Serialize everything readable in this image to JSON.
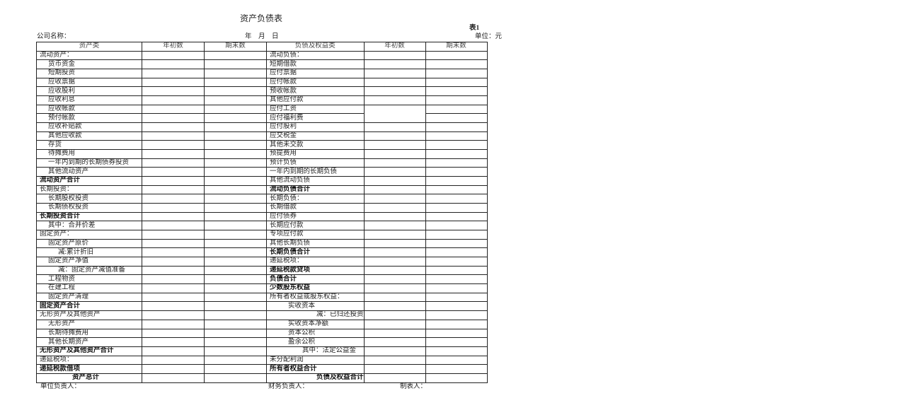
{
  "title": "资产负债表",
  "table_no": "表1",
  "company_label": "公司名称：",
  "date_label": "年　月　日",
  "unit_label": "单位：元",
  "headers": [
    "资产类",
    "年初数",
    "期末数",
    "负债及权益类",
    "年初数",
    "期末数"
  ],
  "assets": [
    {
      "label": "流动资产："
    },
    {
      "label": "货币资金"
    },
    {
      "label": "短期投资"
    },
    {
      "label": "应收票据"
    },
    {
      "label": "应收股利"
    },
    {
      "label": "应收利息"
    },
    {
      "label": "应收帐款"
    },
    {
      "label": "预付帐款"
    },
    {
      "label": "应收补贴款"
    },
    {
      "label": "其他应收款"
    },
    {
      "label": "存货"
    },
    {
      "label": "待摊费用"
    },
    {
      "label": "一年内到期的长期债券投资"
    },
    {
      "label": "其他流动资产"
    },
    {
      "label": "流动资产合计",
      "total": true
    },
    {
      "label": "长期投资："
    },
    {
      "label": "长期股权投资"
    },
    {
      "label": "长期债权投资"
    },
    {
      "label": "长期投资合计",
      "total": true
    },
    {
      "label": "其中：合并价差"
    },
    {
      "label": "固定资产："
    },
    {
      "label": "固定资产原价"
    },
    {
      "label": "减:累计折旧"
    },
    {
      "label": "固定资产净值"
    },
    {
      "label": "减：固定资产减值准备"
    },
    {
      "label": "工程物资"
    },
    {
      "label": "在建工程"
    },
    {
      "label": "固定资产清理"
    },
    {
      "label": "固定资产合计",
      "total": true
    },
    {
      "label": "无形资产及其他资产"
    },
    {
      "label": "无形资产"
    },
    {
      "label": "长期待摊费用"
    },
    {
      "label": "其他长期资产"
    },
    {
      "label": "无形资产及其他资产合计",
      "total": true
    },
    {
      "label": "递延税项："
    },
    {
      "label": "递延税款借项",
      "total": true
    },
    {
      "label": "资产总计",
      "total": true
    }
  ],
  "liabilities": [
    {
      "label": "流动负债："
    },
    {
      "label": "短期借款"
    },
    {
      "label": "应付票据"
    },
    {
      "label": "应付帐款"
    },
    {
      "label": "预收帐款"
    },
    {
      "label": "其他应付款"
    },
    {
      "label": "应付工资"
    },
    {
      "label": "应付福利费"
    },
    {
      "label": "应付股利"
    },
    {
      "label": "应交税金"
    },
    {
      "label": "其他未交款"
    },
    {
      "label": "预提费用"
    },
    {
      "label": "预计负债"
    },
    {
      "label": "一年内到期的长期负债"
    },
    {
      "label": "其他流动负债"
    },
    {
      "label": "流动负债合计",
      "total": true
    },
    {
      "label": "长期负债："
    },
    {
      "label": "长期借款"
    },
    {
      "label": "应付债券"
    },
    {
      "label": "长期应付款"
    },
    {
      "label": "专项应付款"
    },
    {
      "label": "其他长期负债"
    },
    {
      "label": "长期负债合计",
      "total": true
    },
    {
      "label": "递延税项："
    },
    {
      "label": "递延税款贷项",
      "total": true
    },
    {
      "label": "负债合计",
      "total": true
    },
    {
      "label": "少数股东权益",
      "total": true
    },
    {
      "label": "所有者权益或股东权益："
    },
    {
      "label": "实收资本"
    },
    {
      "label": "减：已归还投资"
    },
    {
      "label": "实收资本净额"
    },
    {
      "label": "资本公积"
    },
    {
      "label": "盈余公积"
    },
    {
      "label": "其中：法定公益金"
    },
    {
      "label": "未分配利润"
    },
    {
      "label": "所有者权益合计",
      "total": true
    },
    {
      "label": "负债及权益合计",
      "total": true
    }
  ],
  "footer": {
    "unit_head": "单位负责人：",
    "finance_head": "财务负责人：",
    "preparer": "制表人："
  }
}
